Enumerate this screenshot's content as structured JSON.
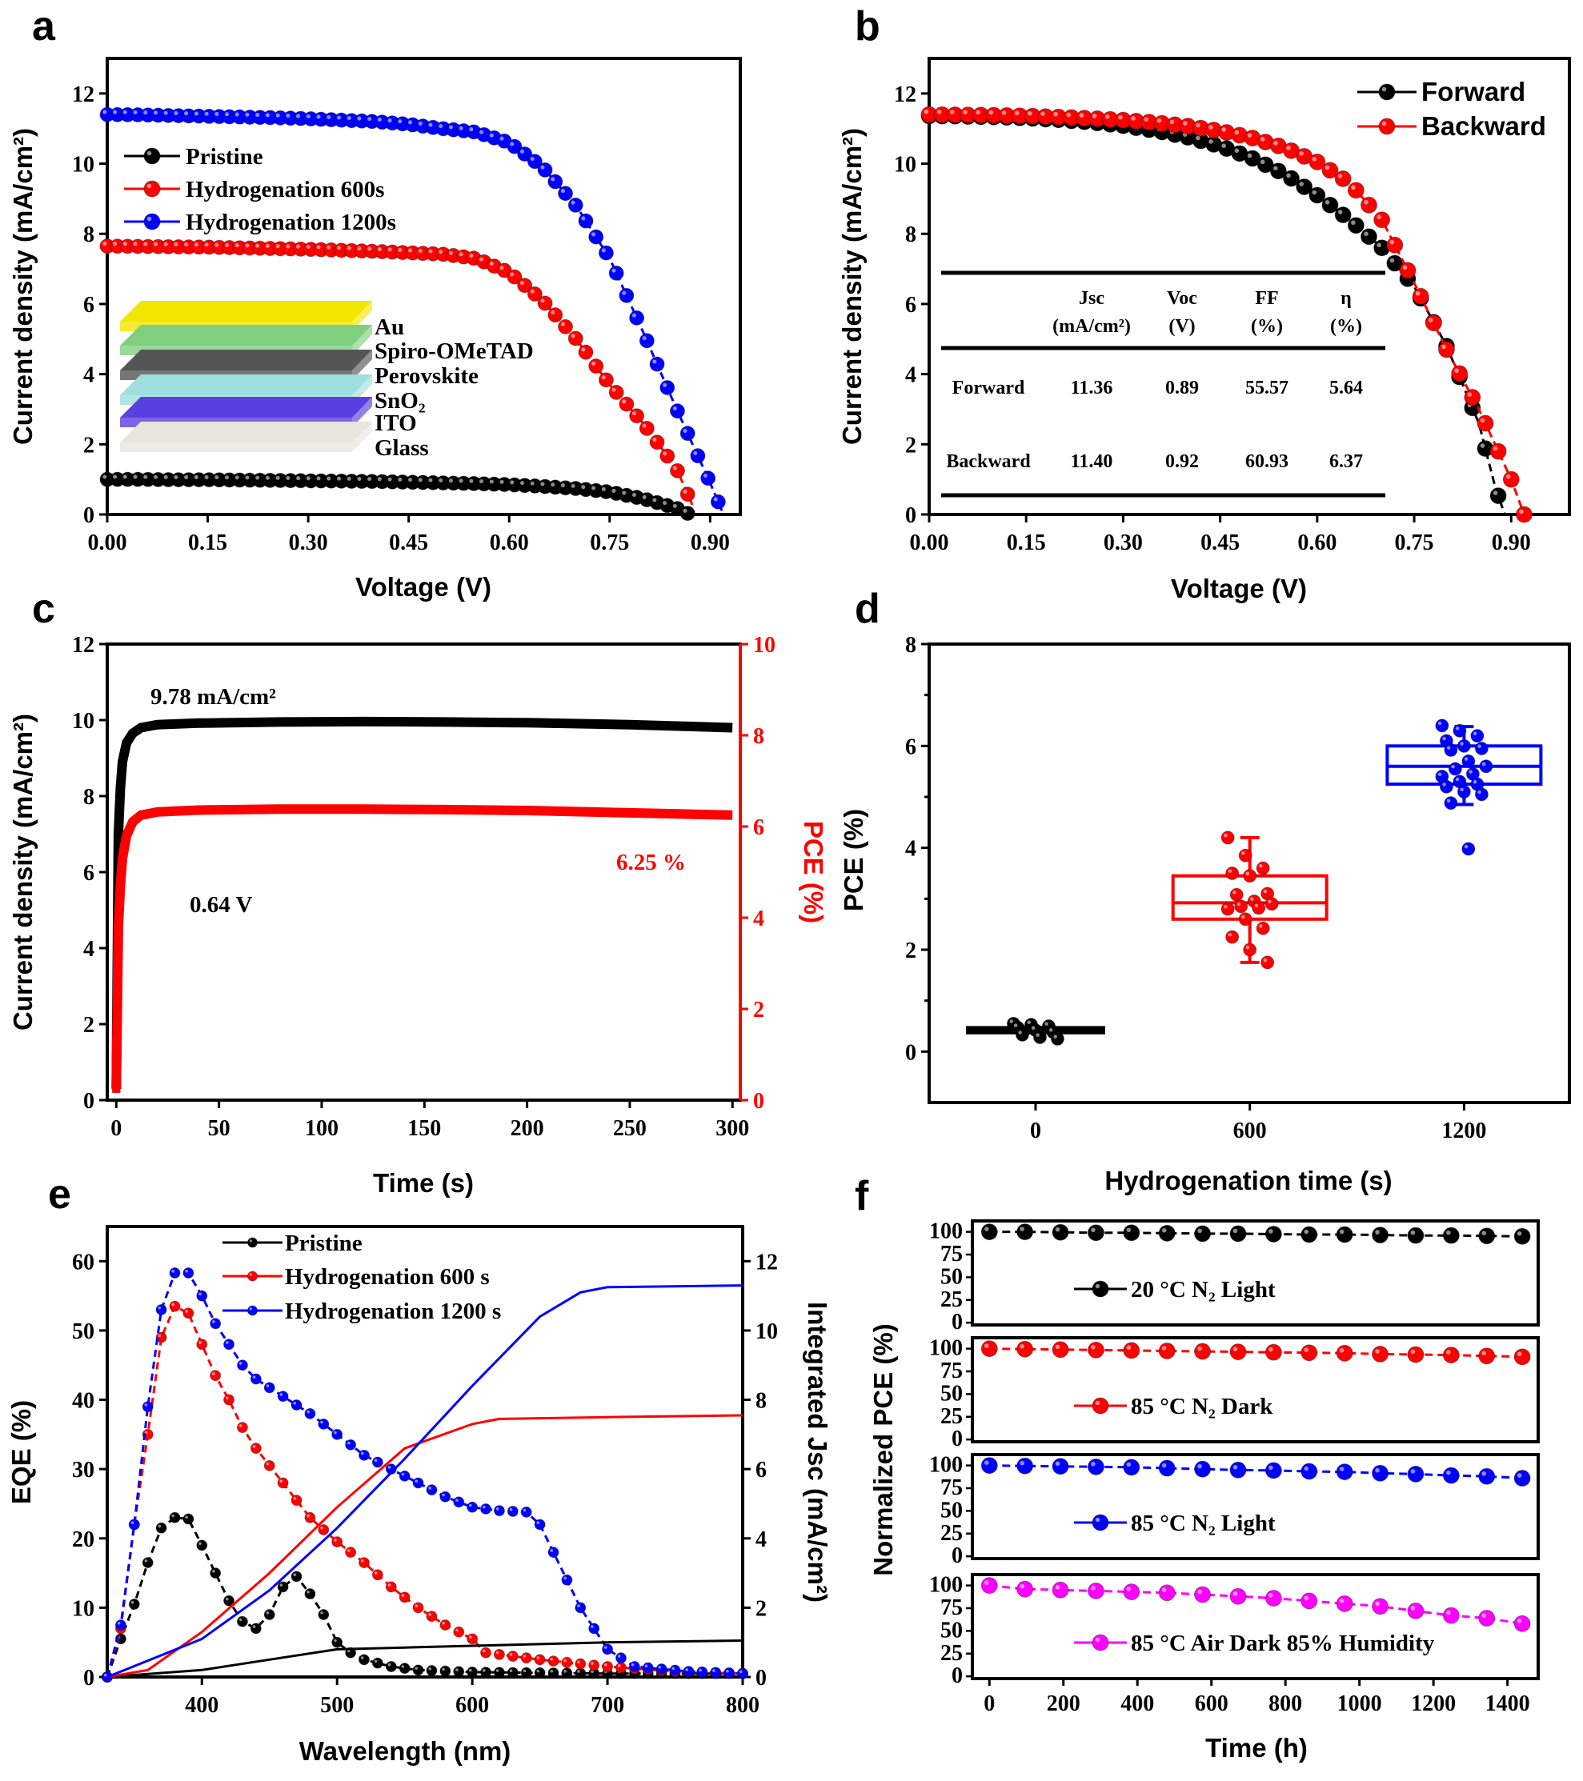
{
  "chart_data": [
    {
      "panel": "a",
      "type": "line",
      "xlabel": "Voltage (V)",
      "ylabel": "Current density (mA/cm²)",
      "xlim": [
        0,
        0.945
      ],
      "ylim": [
        0,
        13
      ],
      "xticks": [
        "0.00",
        "0.15",
        "0.30",
        "0.45",
        "0.60",
        "0.75",
        "0.90"
      ],
      "yticks": [
        "0",
        "2",
        "4",
        "6",
        "8",
        "10",
        "12"
      ],
      "legend": "top-left",
      "series": [
        {
          "name": "Pristine",
          "color": "#000000",
          "x": [
            0,
            0.05,
            0.1,
            0.15,
            0.2,
            0.25,
            0.3,
            0.35,
            0.4,
            0.45,
            0.5,
            0.55,
            0.6,
            0.65,
            0.7,
            0.75,
            0.8,
            0.85,
            0.87
          ],
          "y": [
            1.0,
            1.0,
            0.99,
            0.99,
            0.98,
            0.97,
            0.96,
            0.95,
            0.94,
            0.92,
            0.9,
            0.88,
            0.85,
            0.8,
            0.74,
            0.64,
            0.45,
            0.18,
            0
          ]
        },
        {
          "name": "Hydrogenation 600s",
          "color": "#ff0000",
          "x": [
            0,
            0.05,
            0.1,
            0.15,
            0.2,
            0.25,
            0.3,
            0.35,
            0.4,
            0.45,
            0.5,
            0.55,
            0.6,
            0.65,
            0.7,
            0.75,
            0.8,
            0.85,
            0.875
          ],
          "y": [
            7.65,
            7.64,
            7.63,
            7.62,
            7.6,
            7.58,
            7.56,
            7.53,
            7.5,
            7.46,
            7.42,
            7.3,
            6.9,
            6.1,
            5.0,
            3.7,
            2.6,
            1.3,
            0.2
          ]
        },
        {
          "name": "Hydrogenation 1200s",
          "color": "#0000ff",
          "x": [
            0,
            0.05,
            0.1,
            0.15,
            0.2,
            0.25,
            0.3,
            0.35,
            0.4,
            0.45,
            0.5,
            0.55,
            0.6,
            0.65,
            0.7,
            0.75,
            0.8,
            0.85,
            0.9,
            0.92
          ],
          "y": [
            11.4,
            11.39,
            11.37,
            11.35,
            11.33,
            11.31,
            11.28,
            11.24,
            11.2,
            11.12,
            11.0,
            10.9,
            10.6,
            9.9,
            8.8,
            7.3,
            5.2,
            3.0,
            0.9,
            0
          ]
        }
      ],
      "inset_layers": [
        {
          "label": "Au",
          "color": "#f2e600"
        },
        {
          "label": "Spiro-OMeTAD",
          "color": "#7fcf7f"
        },
        {
          "label": "Perovskite",
          "color": "#555555"
        },
        {
          "label": "SnO₂",
          "color": "#9fdede"
        },
        {
          "label": "ITO",
          "color": "#5a3fe0"
        },
        {
          "label": "Glass",
          "color": "#e6e6dc"
        }
      ]
    },
    {
      "panel": "b",
      "type": "line",
      "xlabel": "Voltage (V)",
      "ylabel": "Current density (mA/cm²)",
      "xlim": [
        0,
        0.99
      ],
      "ylim": [
        0,
        13
      ],
      "xticks": [
        "0.00",
        "0.15",
        "0.30",
        "0.45",
        "0.60",
        "0.75",
        "0.90"
      ],
      "yticks": [
        "0",
        "2",
        "4",
        "6",
        "8",
        "10",
        "12"
      ],
      "legend": "top-right",
      "series": [
        {
          "name": "Forward",
          "color": "#000000",
          "x": [
            0,
            0.05,
            0.1,
            0.15,
            0.2,
            0.25,
            0.3,
            0.35,
            0.4,
            0.45,
            0.5,
            0.55,
            0.6,
            0.65,
            0.7,
            0.75,
            0.8,
            0.85,
            0.875,
            0.89
          ],
          "y": [
            11.36,
            11.35,
            11.33,
            11.3,
            11.25,
            11.18,
            11.08,
            10.94,
            10.75,
            10.5,
            10.15,
            9.7,
            9.1,
            8.4,
            7.6,
            6.5,
            4.8,
            2.6,
            0.8,
            0
          ]
        },
        {
          "name": "Backward",
          "color": "#ff0000",
          "x": [
            0,
            0.05,
            0.1,
            0.15,
            0.2,
            0.25,
            0.3,
            0.35,
            0.4,
            0.45,
            0.5,
            0.55,
            0.6,
            0.65,
            0.7,
            0.75,
            0.8,
            0.85,
            0.9,
            0.92
          ],
          "y": [
            11.4,
            11.39,
            11.38,
            11.36,
            11.33,
            11.29,
            11.24,
            11.17,
            11.07,
            10.93,
            10.73,
            10.45,
            10.05,
            9.45,
            8.4,
            6.6,
            4.7,
            3.0,
            1.0,
            0
          ]
        }
      ],
      "table": {
        "headers": [
          {
            "line1": "",
            "line2": ""
          },
          {
            "line1": "Jsc",
            "line2": "(mA/cm²)"
          },
          {
            "line1": "Voc",
            "line2": "(V)"
          },
          {
            "line1": "FF",
            "line2": "(%)"
          },
          {
            "line1": "η",
            "line2": "(%)"
          }
        ],
        "rows": [
          [
            "Forward",
            "11.36",
            "0.89",
            "55.57",
            "5.64"
          ],
          [
            "Backward",
            "11.40",
            "0.92",
            "60.93",
            "6.37"
          ]
        ]
      }
    },
    {
      "panel": "c",
      "type": "line",
      "xlabel": "Time (s)",
      "ylabel": "Current density (mA/cm²)",
      "y2label": "PCE (%)",
      "xlim": [
        -4.4,
        303.8
      ],
      "ylim": [
        0,
        12
      ],
      "y2lim": [
        0,
        10
      ],
      "xticks": [
        "0",
        "50",
        "100",
        "150",
        "200",
        "250",
        "300"
      ],
      "yticks": [
        "0",
        "2",
        "4",
        "6",
        "8",
        "10",
        "12"
      ],
      "y2ticks": [
        "0",
        "2",
        "4",
        "6",
        "8",
        "10"
      ],
      "y2color": "#ff0000",
      "series": [
        {
          "axis": "left",
          "color": "#000000",
          "x": [
            0,
            1,
            2,
            3,
            5,
            8,
            12,
            20,
            40,
            80,
            120,
            160,
            200,
            250,
            300
          ],
          "y": [
            0.3,
            7.0,
            8.2,
            8.9,
            9.4,
            9.65,
            9.8,
            9.88,
            9.92,
            9.95,
            9.96,
            9.95,
            9.93,
            9.88,
            9.8
          ]
        },
        {
          "axis": "right",
          "color": "#ff0000",
          "x": [
            0,
            1,
            2,
            3,
            5,
            8,
            12,
            20,
            40,
            80,
            120,
            160,
            200,
            250,
            300
          ],
          "y": [
            0.25,
            3.8,
            4.7,
            5.3,
            5.8,
            6.1,
            6.25,
            6.32,
            6.36,
            6.38,
            6.38,
            6.37,
            6.35,
            6.3,
            6.25
          ]
        }
      ],
      "annotations": [
        {
          "text": "9.78 mA/cm²",
          "color": "#000000"
        },
        {
          "text": "0.64 V",
          "color": "#000000"
        },
        {
          "text": "6.25 %",
          "color": "#ff0000"
        }
      ]
    },
    {
      "panel": "d",
      "type": "box",
      "xlabel": "Hydrogenation time (s)",
      "ylabel": "PCE (%)",
      "xlim": [
        -298,
        1495
      ],
      "ylim": [
        -1,
        8
      ],
      "xticks": [
        "0",
        "600",
        "1200"
      ],
      "yticks": [
        "0",
        "2",
        "4",
        "6",
        "8"
      ],
      "groups": [
        {
          "x": 0,
          "color": "#000000",
          "q1": 0.37,
          "median": 0.42,
          "q3": 0.47,
          "whisker_low": 0.37,
          "whisker_high": 0.47,
          "points": [
            0.55,
            0.53,
            0.5,
            0.47,
            0.42,
            0.38,
            0.33,
            0.28,
            0.25
          ]
        },
        {
          "x": 600,
          "color": "#ff0000",
          "q1": 2.6,
          "median": 2.92,
          "q3": 3.45,
          "whisker_low": 1.75,
          "whisker_high": 4.2,
          "points": [
            4.2,
            3.85,
            3.6,
            3.5,
            3.45,
            3.1,
            3.08,
            2.95,
            2.9,
            2.85,
            2.82,
            2.8,
            2.6,
            2.42,
            2.25,
            2.0,
            1.75
          ]
        },
        {
          "x": 1200,
          "color": "#0000ff",
          "q1": 5.25,
          "median": 5.6,
          "q3": 6.0,
          "whisker_low": 4.85,
          "whisker_high": 6.38,
          "points": [
            6.4,
            6.3,
            6.2,
            6.1,
            6.0,
            5.95,
            5.92,
            5.7,
            5.6,
            5.55,
            5.45,
            5.4,
            5.3,
            5.25,
            5.2,
            5.1,
            5.05,
            4.88,
            3.98
          ]
        }
      ]
    },
    {
      "panel": "e",
      "type": "line",
      "xlabel": "Wavelength (nm)",
      "ylabel": "EQE (%)",
      "y2label": "Integrated Jsc (mA/cm²)",
      "xlim": [
        330,
        800
      ],
      "ylim": [
        0,
        65
      ],
      "y2lim": [
        0,
        13
      ],
      "xticks": [
        "400",
        "500",
        "600",
        "700",
        "800"
      ],
      "yticks": [
        "0",
        "10",
        "20",
        "30",
        "40",
        "50",
        "60"
      ],
      "y2ticks": [
        "0",
        "2",
        "4",
        "6",
        "8",
        "10",
        "12"
      ],
      "legend": "top-left",
      "series": [
        {
          "name": "Pristine",
          "color": "#000000",
          "axis": "left",
          "x": [
            330,
            340,
            350,
            360,
            370,
            380,
            390,
            400,
            410,
            420,
            430,
            440,
            450,
            460,
            470,
            480,
            490,
            500,
            510,
            520,
            540,
            560,
            600,
            700,
            800
          ],
          "y": [
            0,
            5.5,
            10.5,
            16.5,
            21.5,
            23,
            22.8,
            19,
            15,
            11,
            8,
            7,
            9,
            13,
            14.5,
            12,
            9,
            5,
            3.5,
            2.5,
            1.5,
            1,
            0.7,
            0.5,
            0.5
          ]
        },
        {
          "name": "Hydrogenation 600 s",
          "color": "#ff0000",
          "axis": "left",
          "x": [
            330,
            340,
            350,
            360,
            370,
            380,
            390,
            400,
            410,
            420,
            430,
            440,
            450,
            460,
            480,
            500,
            520,
            540,
            560,
            580,
            600,
            610,
            650,
            700,
            750,
            800
          ],
          "y": [
            0,
            7,
            22,
            35,
            49,
            53.5,
            52.5,
            48,
            43.5,
            40,
            36,
            33,
            30.5,
            28,
            23,
            19.5,
            16.5,
            13,
            10,
            7.5,
            5.5,
            3.5,
            2.5,
            1.5,
            0.8,
            0.5
          ]
        },
        {
          "name": "Hydrogenation 1200 s",
          "color": "#0000ff",
          "axis": "left",
          "x": [
            330,
            340,
            350,
            360,
            370,
            380,
            390,
            400,
            410,
            420,
            430,
            440,
            460,
            480,
            500,
            520,
            540,
            560,
            580,
            600,
            620,
            640,
            650,
            660,
            680,
            700,
            720,
            760,
            800
          ],
          "y": [
            0,
            7.5,
            22,
            39,
            53,
            58.3,
            58.3,
            55,
            51,
            48,
            45,
            43,
            40.5,
            38,
            35,
            32,
            30,
            28,
            26,
            24.5,
            24,
            23.8,
            22,
            18,
            10,
            4,
            1.5,
            0.8,
            0.5
          ]
        },
        {
          "color": "#000000",
          "axis": "right",
          "x": [
            330,
            400,
            450,
            500,
            550,
            600,
            700,
            800
          ],
          "y": [
            0,
            0.2,
            0.5,
            0.8,
            0.85,
            0.9,
            1.0,
            1.05
          ]
        },
        {
          "color": "#ff0000",
          "axis": "right",
          "x": [
            330,
            360,
            400,
            450,
            500,
            550,
            600,
            620,
            700,
            800
          ],
          "y": [
            0,
            0.2,
            1.3,
            3.0,
            4.9,
            6.6,
            7.3,
            7.45,
            7.5,
            7.55
          ]
        },
        {
          "color": "#0000ff",
          "axis": "right",
          "x": [
            330,
            400,
            450,
            500,
            550,
            600,
            650,
            680,
            700,
            800
          ],
          "y": [
            0,
            1.1,
            2.5,
            4.3,
            6.3,
            8.4,
            10.4,
            11.1,
            11.25,
            11.3
          ]
        }
      ]
    },
    {
      "panel": "f",
      "type": "line",
      "xlabel": "Time (h)",
      "ylabel": "Normalized PCE (%)",
      "xlim": [
        -46,
        1483
      ],
      "ylim": [
        -2.5,
        112
      ],
      "xticks": [
        "0",
        "200",
        "400",
        "600",
        "800",
        "1000",
        "1200",
        "1400"
      ],
      "yticks": [
        "0",
        "25",
        "50",
        "75",
        "100"
      ],
      "x": [
        0,
        96,
        192,
        288,
        384,
        480,
        576,
        672,
        768,
        864,
        960,
        1056,
        1152,
        1248,
        1344,
        1440
      ],
      "subplots": [
        {
          "name": "20 °C  N₂ Light",
          "color": "#000000",
          "y": [
            100,
            100,
            99.5,
            99,
            99,
            98.5,
            98,
            98,
            97.5,
            97,
            97,
            96.5,
            96,
            96,
            95.5,
            95
          ]
        },
        {
          "name": "85 °C  N₂ Dark",
          "color": "#ff0000",
          "y": [
            100,
            99.5,
            99,
            98.5,
            98,
            97.5,
            97,
            96.5,
            96,
            95.5,
            95,
            94,
            93.5,
            93,
            92,
            91
          ]
        },
        {
          "name": "85 °C  N₂ Light",
          "color": "#0000ff",
          "y": [
            100,
            99.5,
            99,
            98.5,
            98,
            97,
            96,
            95,
            94.5,
            93.5,
            93,
            91.5,
            90.5,
            89,
            88,
            86
          ]
        },
        {
          "name": "85 °C  Air Dark 85% Humidity",
          "color": "#ff00ff",
          "y": [
            100,
            96,
            95,
            94,
            93,
            92,
            90,
            88,
            86,
            83,
            80,
            77,
            72,
            67,
            64,
            58
          ]
        }
      ]
    }
  ]
}
